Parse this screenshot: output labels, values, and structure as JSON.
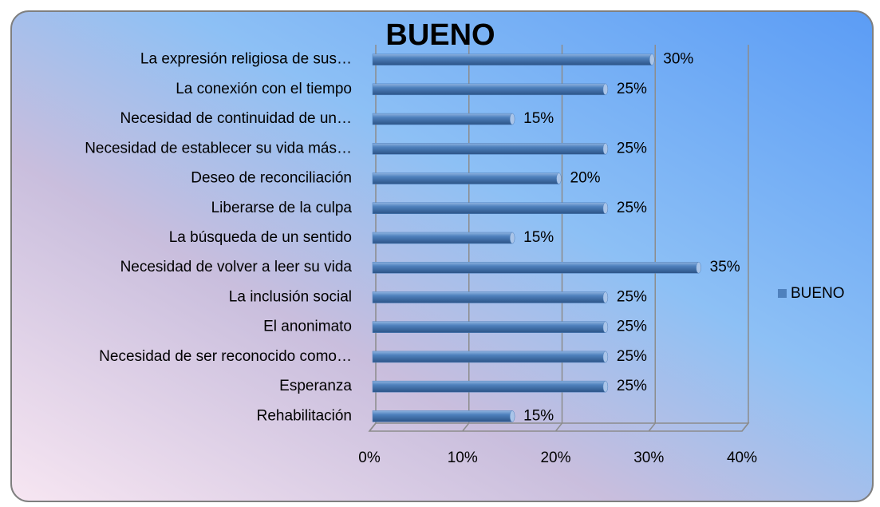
{
  "chart_data": {
    "type": "hbar",
    "title": "BUENO",
    "categories": [
      "La expresión religiosa de sus…",
      "La conexión con el tiempo",
      "Necesidad de continuidad de un…",
      "Necesidad de establecer su vida más…",
      "Deseo de reconciliación",
      "Liberarse de la culpa",
      "La búsqueda de un sentido",
      "Necesidad de volver a leer su vida",
      "La inclusión social",
      "El anonimato",
      "Necesidad de ser reconocido como…",
      "Esperanza",
      "Rehabilitación"
    ],
    "series": [
      {
        "name": "BUENO",
        "color": "#4f81bd",
        "values": [
          30,
          25,
          15,
          25,
          20,
          25,
          15,
          35,
          25,
          25,
          25,
          25,
          15
        ],
        "value_labels": [
          "30%",
          "25%",
          "15%",
          "25%",
          "20%",
          "25%",
          "15%",
          "35%",
          "25%",
          "25%",
          "25%",
          "25%",
          "15%"
        ]
      }
    ],
    "xlim": [
      0,
      40
    ],
    "xticks": [
      {
        "value": 0,
        "label": "0%"
      },
      {
        "value": 10,
        "label": "10%"
      },
      {
        "value": 20,
        "label": "20%"
      },
      {
        "value": 30,
        "label": "30%"
      },
      {
        "value": 40,
        "label": "40%"
      }
    ],
    "grid": true,
    "legend": "right"
  }
}
